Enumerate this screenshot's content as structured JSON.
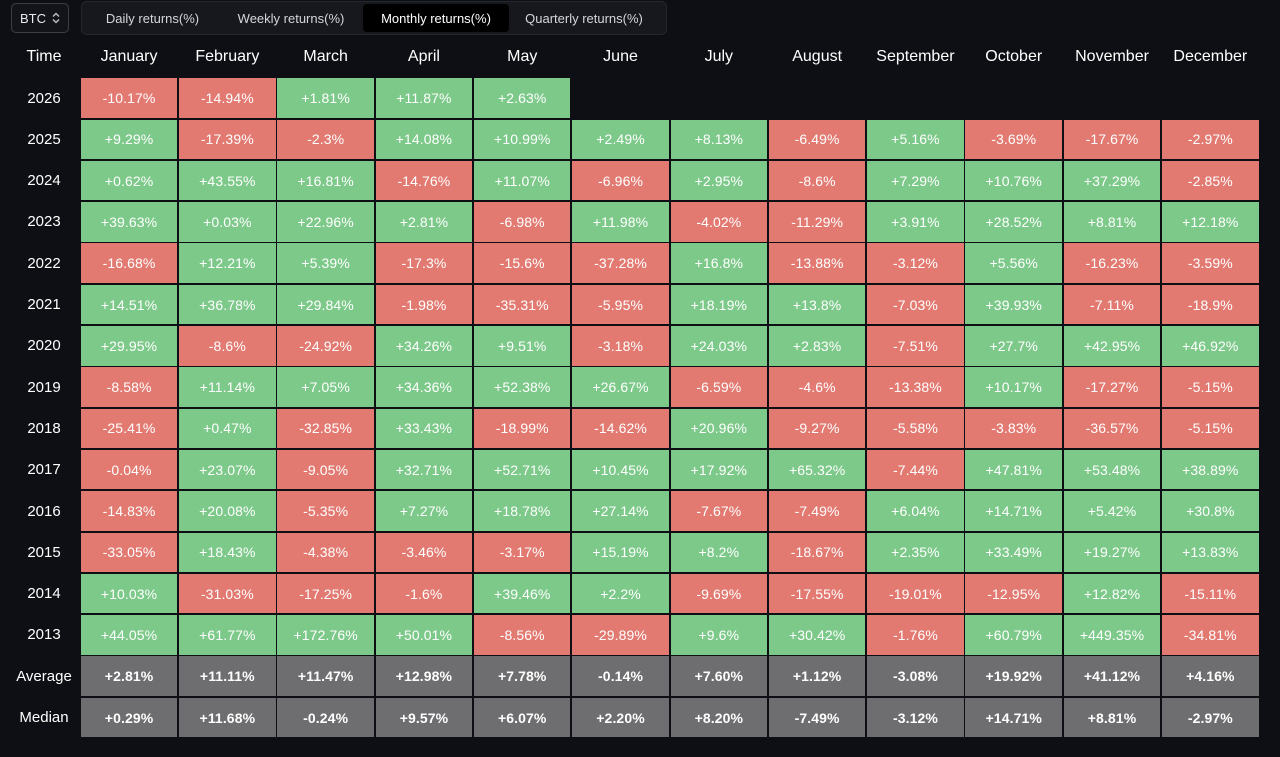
{
  "asset_selector": {
    "value": "BTC"
  },
  "tabs": [
    {
      "label": "Daily returns(%)",
      "active": false
    },
    {
      "label": "Weekly returns(%)",
      "active": false
    },
    {
      "label": "Monthly returns(%)",
      "active": true
    },
    {
      "label": "Quarterly returns(%)",
      "active": false
    }
  ],
  "colors": {
    "positive": "#7dc98a",
    "negative": "#e27a72",
    "summary": "#6e6e70",
    "background": "#0d0f14"
  },
  "table": {
    "corner_label": "Time",
    "months": [
      "January",
      "February",
      "March",
      "April",
      "May",
      "June",
      "July",
      "August",
      "September",
      "October",
      "November",
      "December"
    ],
    "rows": [
      {
        "year": "2026",
        "values": [
          "-10.17%",
          "-14.94%",
          "+1.81%",
          "+11.87%",
          "+2.63%",
          "",
          "",
          "",
          "",
          "",
          "",
          ""
        ]
      },
      {
        "year": "2025",
        "values": [
          "+9.29%",
          "-17.39%",
          "-2.3%",
          "+14.08%",
          "+10.99%",
          "+2.49%",
          "+8.13%",
          "-6.49%",
          "+5.16%",
          "-3.69%",
          "-17.67%",
          "-2.97%"
        ]
      },
      {
        "year": "2024",
        "values": [
          "+0.62%",
          "+43.55%",
          "+16.81%",
          "-14.76%",
          "+11.07%",
          "-6.96%",
          "+2.95%",
          "-8.6%",
          "+7.29%",
          "+10.76%",
          "+37.29%",
          "-2.85%"
        ]
      },
      {
        "year": "2023",
        "values": [
          "+39.63%",
          "+0.03%",
          "+22.96%",
          "+2.81%",
          "-6.98%",
          "+11.98%",
          "-4.02%",
          "-11.29%",
          "+3.91%",
          "+28.52%",
          "+8.81%",
          "+12.18%"
        ]
      },
      {
        "year": "2022",
        "values": [
          "-16.68%",
          "+12.21%",
          "+5.39%",
          "-17.3%",
          "-15.6%",
          "-37.28%",
          "+16.8%",
          "-13.88%",
          "-3.12%",
          "+5.56%",
          "-16.23%",
          "-3.59%"
        ]
      },
      {
        "year": "2021",
        "values": [
          "+14.51%",
          "+36.78%",
          "+29.84%",
          "-1.98%",
          "-35.31%",
          "-5.95%",
          "+18.19%",
          "+13.8%",
          "-7.03%",
          "+39.93%",
          "-7.11%",
          "-18.9%"
        ]
      },
      {
        "year": "2020",
        "values": [
          "+29.95%",
          "-8.6%",
          "-24.92%",
          "+34.26%",
          "+9.51%",
          "-3.18%",
          "+24.03%",
          "+2.83%",
          "-7.51%",
          "+27.7%",
          "+42.95%",
          "+46.92%"
        ]
      },
      {
        "year": "2019",
        "values": [
          "-8.58%",
          "+11.14%",
          "+7.05%",
          "+34.36%",
          "+52.38%",
          "+26.67%",
          "-6.59%",
          "-4.6%",
          "-13.38%",
          "+10.17%",
          "-17.27%",
          "-5.15%"
        ]
      },
      {
        "year": "2018",
        "values": [
          "-25.41%",
          "+0.47%",
          "-32.85%",
          "+33.43%",
          "-18.99%",
          "-14.62%",
          "+20.96%",
          "-9.27%",
          "-5.58%",
          "-3.83%",
          "-36.57%",
          "-5.15%"
        ]
      },
      {
        "year": "2017",
        "values": [
          "-0.04%",
          "+23.07%",
          "-9.05%",
          "+32.71%",
          "+52.71%",
          "+10.45%",
          "+17.92%",
          "+65.32%",
          "-7.44%",
          "+47.81%",
          "+53.48%",
          "+38.89%"
        ]
      },
      {
        "year": "2016",
        "values": [
          "-14.83%",
          "+20.08%",
          "-5.35%",
          "+7.27%",
          "+18.78%",
          "+27.14%",
          "-7.67%",
          "-7.49%",
          "+6.04%",
          "+14.71%",
          "+5.42%",
          "+30.8%"
        ]
      },
      {
        "year": "2015",
        "values": [
          "-33.05%",
          "+18.43%",
          "-4.38%",
          "-3.46%",
          "-3.17%",
          "+15.19%",
          "+8.2%",
          "-18.67%",
          "+2.35%",
          "+33.49%",
          "+19.27%",
          "+13.83%"
        ]
      },
      {
        "year": "2014",
        "values": [
          "+10.03%",
          "-31.03%",
          "-17.25%",
          "-1.6%",
          "+39.46%",
          "+2.2%",
          "-9.69%",
          "-17.55%",
          "-19.01%",
          "-12.95%",
          "+12.82%",
          "-15.11%"
        ]
      },
      {
        "year": "2013",
        "values": [
          "+44.05%",
          "+61.77%",
          "+172.76%",
          "+50.01%",
          "-8.56%",
          "-29.89%",
          "+9.6%",
          "+30.42%",
          "-1.76%",
          "+60.79%",
          "+449.35%",
          "-34.81%"
        ]
      }
    ],
    "summary": [
      {
        "label": "Average",
        "values": [
          "+2.81%",
          "+11.11%",
          "+11.47%",
          "+12.98%",
          "+7.78%",
          "-0.14%",
          "+7.60%",
          "+1.12%",
          "-3.08%",
          "+19.92%",
          "+41.12%",
          "+4.16%"
        ]
      },
      {
        "label": "Median",
        "values": [
          "+0.29%",
          "+11.68%",
          "-0.24%",
          "+9.57%",
          "+6.07%",
          "+2.20%",
          "+8.20%",
          "-7.49%",
          "-3.12%",
          "+14.71%",
          "+8.81%",
          "-2.97%"
        ]
      }
    ]
  }
}
